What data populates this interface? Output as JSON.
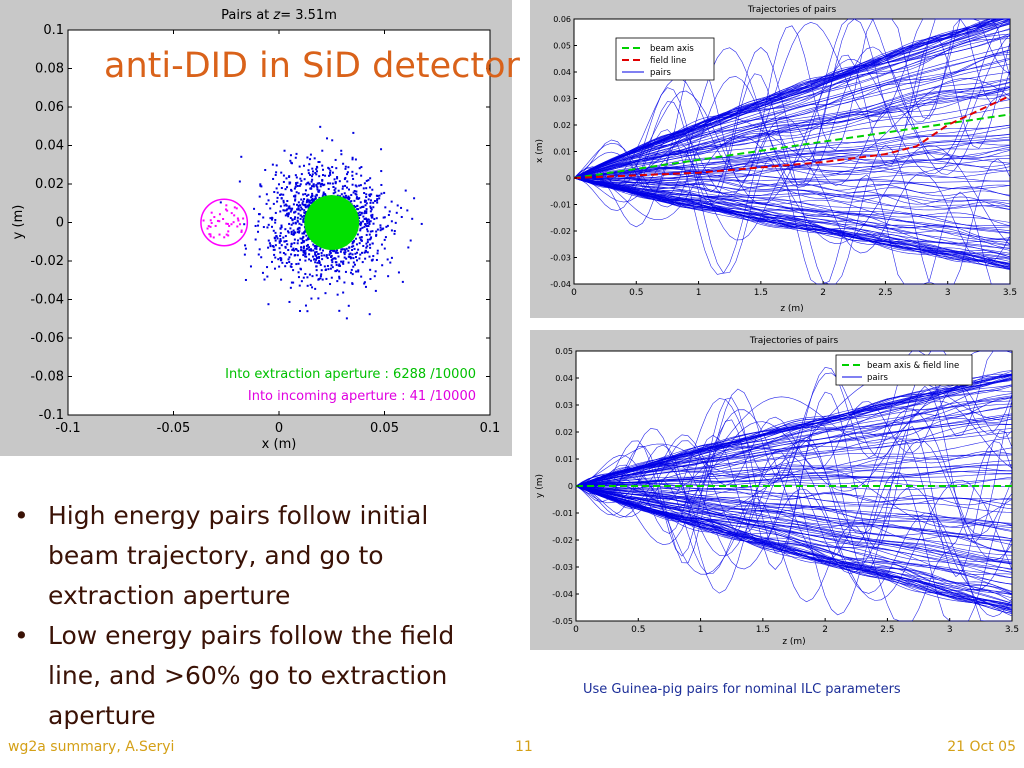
{
  "slide": {
    "title": "anti-DID in SiD detector",
    "bullets": [
      "High energy pairs follow initial beam trajectory, and go to extraction aperture",
      "Low energy pairs follow the field line, and >60% go to extraction aperture"
    ],
    "caption": "Use Guinea-pig pairs for nominal ILC parameters",
    "footer": {
      "left": "wg2a summary, A.Seryi",
      "center": "11",
      "right": "21 Oct 05"
    }
  },
  "colors": {
    "title": "#d9621a",
    "bullet_text": "#3a1206",
    "caption": "#1d2f99",
    "footer": "#d4a017",
    "pairs": "#0000e0",
    "extraction": "#00e000",
    "incoming": "#ff00ff",
    "field_line": "#e00000"
  },
  "chart_data": [
    {
      "type": "scatter",
      "title_prefix": "Pairs at ",
      "title_var": "z",
      "title_suffix": "= 3.51m",
      "xlabel": "x (m)",
      "ylabel": "y (m)",
      "xlim": [
        -0.1,
        0.1
      ],
      "ylim": [
        -0.1,
        0.1
      ],
      "xticks": [
        -0.1,
        -0.05,
        0,
        0.05,
        0.1
      ],
      "xtick_labels": [
        "-0.1",
        "-0.05",
        "0",
        "0.05",
        "0.1"
      ],
      "yticks": [
        0.1,
        0.08,
        0.06,
        0.04,
        0.02,
        0,
        -0.02,
        -0.04,
        -0.06,
        -0.08,
        -0.1
      ],
      "ytick_labels": [
        "0.1",
        "0.08",
        "0.06",
        "0.04",
        "0.02",
        "0",
        "-0.02",
        "-0.04",
        "-0.06",
        "-0.08",
        "-0.1"
      ],
      "scatter_cloud": {
        "center": [
          0.022,
          0.0
        ],
        "spread": [
          0.023,
          0.024
        ],
        "count": 1400
      },
      "extraction_aperture": {
        "center": [
          0.025,
          0.0
        ],
        "radius": 0.013
      },
      "incoming_aperture": {
        "center": [
          -0.026,
          0.0
        ],
        "radius": 0.011
      },
      "annotations": [
        {
          "text": "Into extraction aperture : 6288 /10000",
          "color": "#00c000"
        },
        {
          "text": "Into incoming aperture : 41 /10000",
          "color": "#e000e0"
        }
      ]
    },
    {
      "type": "line",
      "title": "Trajectories of pairs",
      "xlabel": "z (m)",
      "ylabel": "x (m)",
      "xlim": [
        0,
        3.5
      ],
      "ylim": [
        -0.04,
        0.06
      ],
      "xticks": [
        0,
        0.5,
        1,
        1.5,
        2,
        2.5,
        3,
        3.5
      ],
      "xtick_labels": [
        "0",
        "0.5",
        "1",
        "1.5",
        "2",
        "2.5",
        "3",
        "3.5"
      ],
      "yticks": [
        0.06,
        0.05,
        0.04,
        0.03,
        0.02,
        0.01,
        0,
        -0.01,
        -0.02,
        -0.03,
        -0.04
      ],
      "ytick_labels": [
        "0.06",
        "0.05",
        "0.04",
        "0.03",
        "0.02",
        "0.01",
        "0",
        "-0.01",
        "-0.02",
        "-0.03",
        "-0.04"
      ],
      "legend": [
        "beam axis",
        "field line",
        "pairs"
      ],
      "legend_position": "top-left",
      "beam_axis": {
        "x": [
          0,
          3.5
        ],
        "y": [
          0,
          0.024
        ]
      },
      "field_line": {
        "x": [
          0,
          0.5,
          1,
          1.5,
          2,
          2.5,
          2.75,
          3.0,
          3.5
        ],
        "y": [
          0,
          0.001,
          0.002,
          0.004,
          0.006,
          0.009,
          0.012,
          0.02,
          0.031
        ]
      },
      "pairs_envelope": {
        "upper_end": 0.062,
        "lower_end": -0.034,
        "count": 140
      }
    },
    {
      "type": "line",
      "title": "Trajectories of pairs",
      "xlabel": "z (m)",
      "ylabel": "y (m)",
      "xlim": [
        0,
        3.5
      ],
      "ylim": [
        -0.05,
        0.05
      ],
      "xticks": [
        0,
        0.5,
        1,
        1.5,
        2,
        2.5,
        3,
        3.5
      ],
      "xtick_labels": [
        "0",
        "0.5",
        "1",
        "1.5",
        "2",
        "2.5",
        "3",
        "3.5"
      ],
      "yticks": [
        0.05,
        0.04,
        0.03,
        0.02,
        0.01,
        0,
        -0.01,
        -0.02,
        -0.03,
        -0.04,
        -0.05
      ],
      "ytick_labels": [
        "0.05",
        "0.04",
        "0.03",
        "0.02",
        "0.01",
        "0",
        "-0.01",
        "-0.02",
        "-0.03",
        "-0.04",
        "-0.05"
      ],
      "legend": [
        "beam axis & field line",
        "pairs"
      ],
      "legend_position": "top-right",
      "beam_axis": {
        "x": [
          0,
          3.5
        ],
        "y": [
          0,
          0
        ]
      },
      "pairs_envelope": {
        "upper_end": 0.042,
        "lower_end": -0.047,
        "count": 140
      }
    }
  ]
}
